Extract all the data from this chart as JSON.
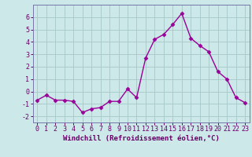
{
  "x": [
    0,
    1,
    2,
    3,
    4,
    5,
    6,
    7,
    8,
    9,
    10,
    11,
    12,
    13,
    14,
    15,
    16,
    17,
    18,
    19,
    20,
    21,
    22,
    23
  ],
  "y": [
    -0.7,
    -0.3,
    -0.7,
    -0.7,
    -0.8,
    -1.7,
    -1.4,
    -1.3,
    -0.8,
    -0.8,
    0.2,
    -0.5,
    2.7,
    4.2,
    4.6,
    5.4,
    6.3,
    4.3,
    3.7,
    3.2,
    1.6,
    1.0,
    -0.5,
    -0.9
  ],
  "line_color": "#990099",
  "marker": "D",
  "marker_size": 2.5,
  "linewidth": 1.0,
  "xlabel": "Windchill (Refroidissement éolien,°C)",
  "xlabel_fontsize": 6.5,
  "xlim": [
    -0.5,
    23.5
  ],
  "ylim": [
    -2.5,
    7.0
  ],
  "yticks": [
    -2,
    -1,
    0,
    1,
    2,
    3,
    4,
    5,
    6
  ],
  "xticks": [
    0,
    1,
    2,
    3,
    4,
    5,
    6,
    7,
    8,
    9,
    10,
    11,
    12,
    13,
    14,
    15,
    16,
    17,
    18,
    19,
    20,
    21,
    22,
    23
  ],
  "bg_color": "#cce8e8",
  "grid_color": "#aacccc",
  "tick_color": "#660066",
  "tick_fontsize": 6.0,
  "xlabel_color": "#660066",
  "spine_color": "#7777aa"
}
